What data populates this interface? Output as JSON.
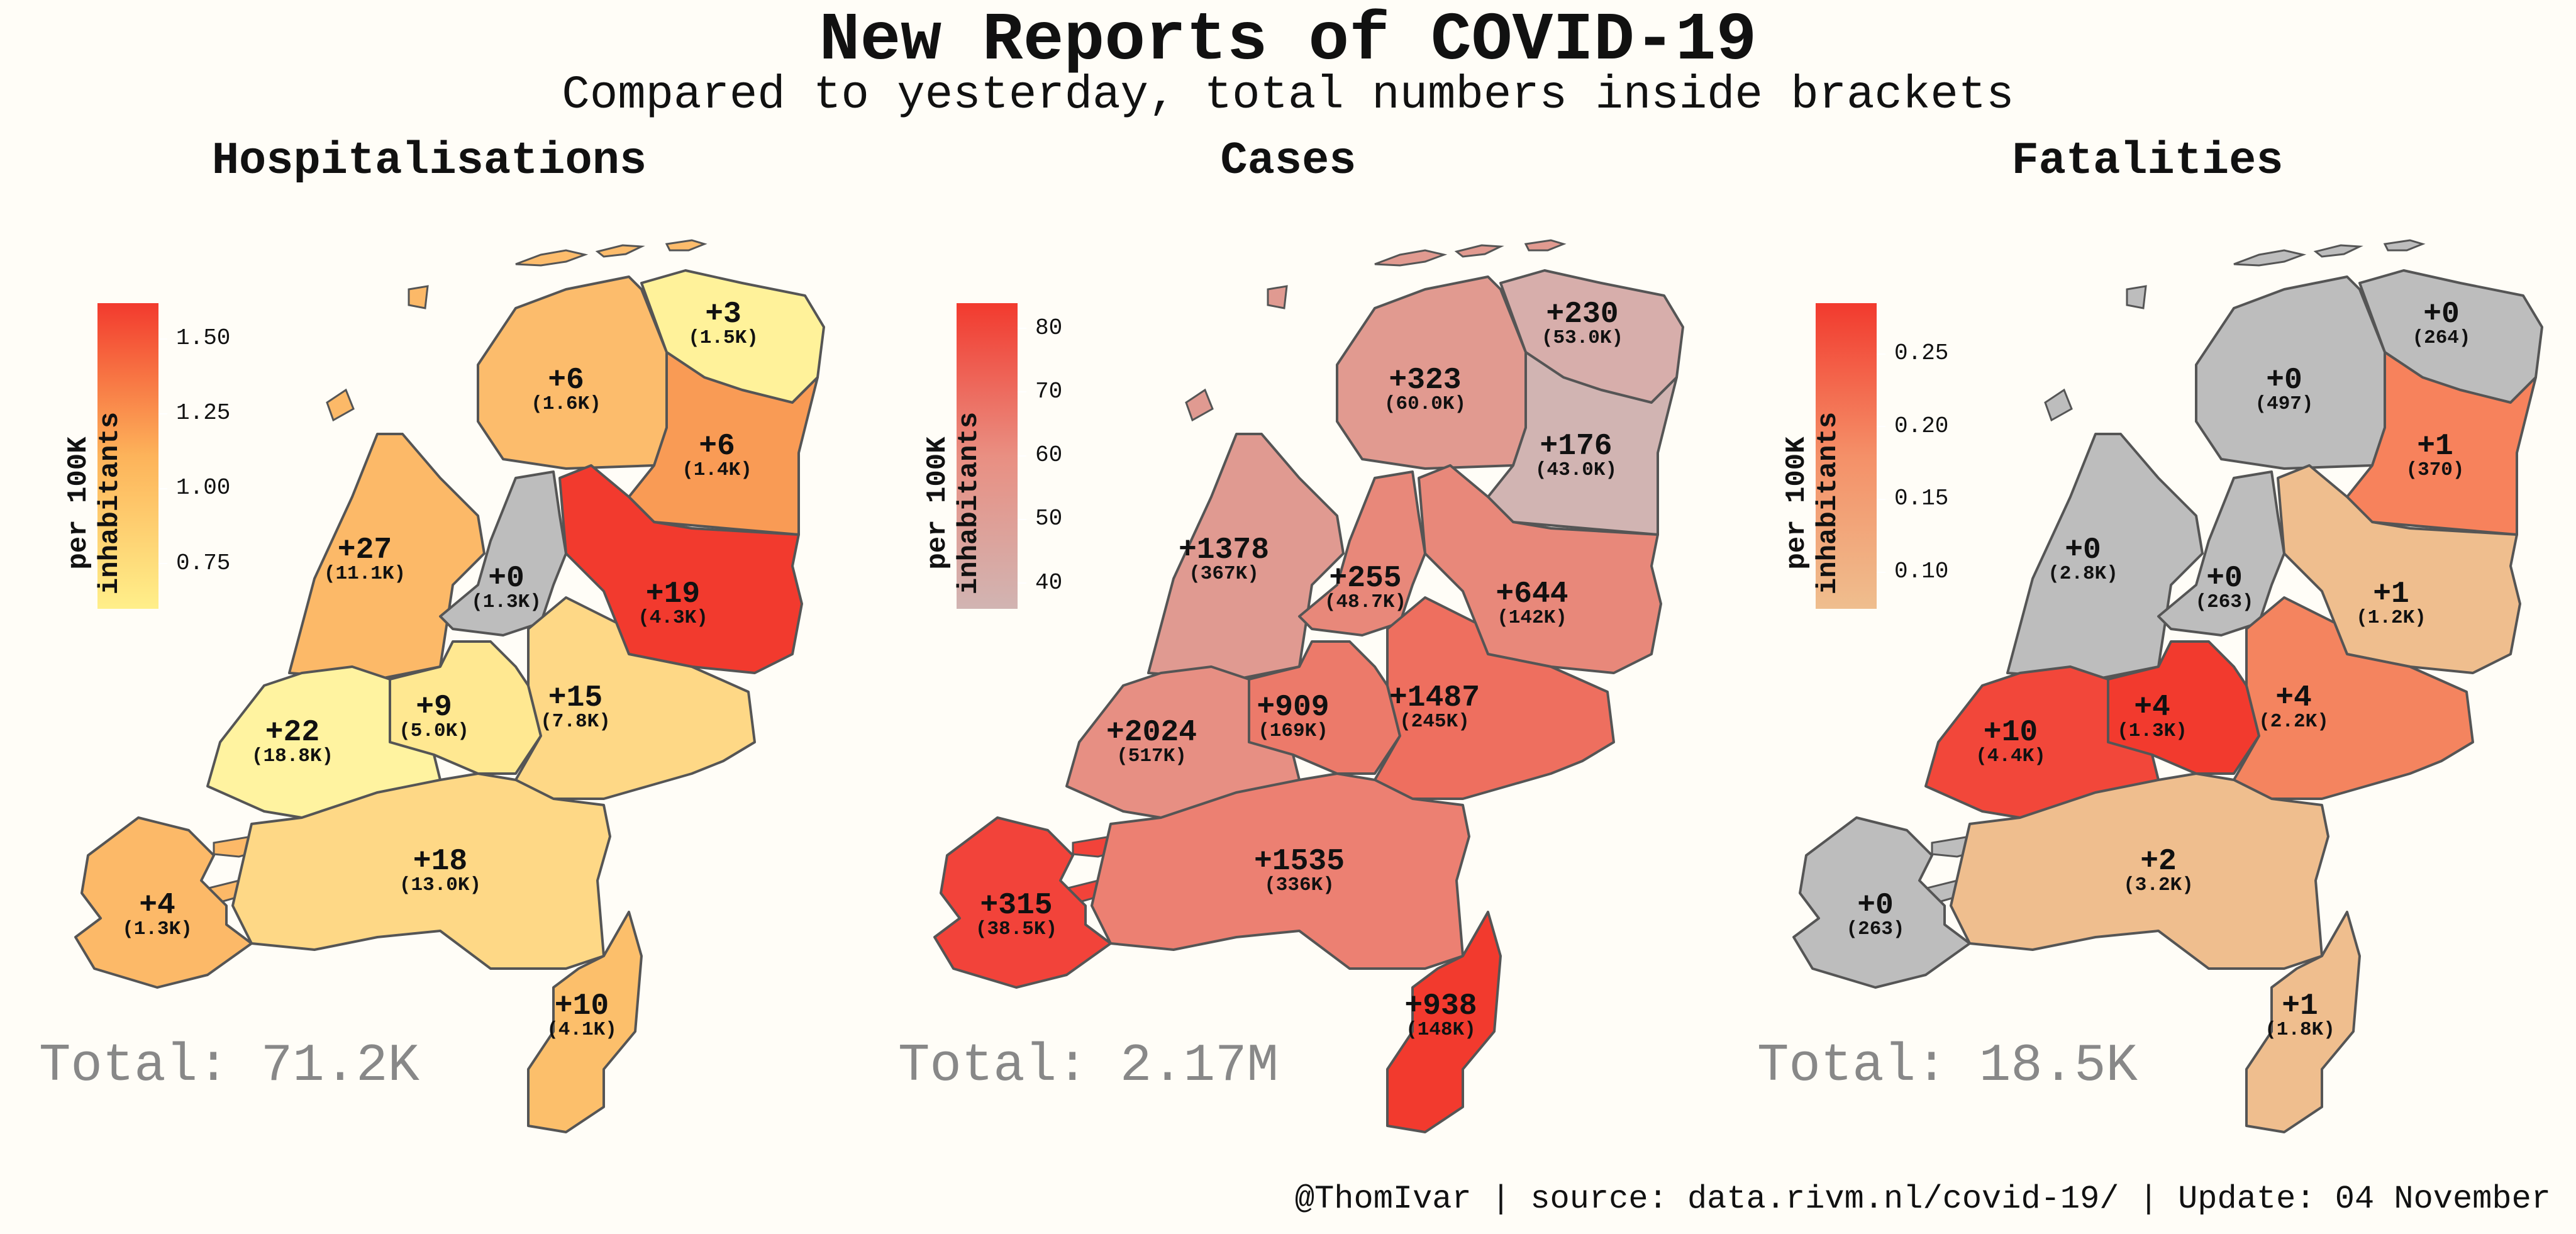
{
  "title": "New Reports of COVID-19",
  "subtitle": "Compared to yesterday, total numbers inside brackets",
  "caption": "@ThomIvar | source: data.rivm.nl/covid-19/ | Update: 04 November",
  "legend_label": "per 100K inhabitants",
  "no_data_color": "#bdbdbd",
  "panels": [
    {
      "title": "Hospitalisations",
      "total": "Total: 71.2K",
      "scale_colors": [
        "#ffef8a",
        "#fdb35a",
        "#f23a2e"
      ],
      "scale_ticks": [
        "1.50",
        "1.25",
        "1.00",
        "0.75"
      ],
      "scale_range": [
        0.6,
        1.62
      ],
      "regions": [
        {
          "id": "groningen",
          "delta": "+3",
          "total": "(1.5K)",
          "color": "#fff29a"
        },
        {
          "id": "friesland",
          "delta": "+6",
          "total": "(1.6K)",
          "color": "#fcbc6c"
        },
        {
          "id": "drenthe",
          "delta": "+6",
          "total": "(1.4K)",
          "color": "#f99b55"
        },
        {
          "id": "noord-holland",
          "delta": "+27",
          "total": "(11.1K)",
          "color": "#fcb968"
        },
        {
          "id": "flevoland",
          "delta": "+0",
          "total": "(1.3K)",
          "color": "#bdbdbd"
        },
        {
          "id": "overijssel",
          "delta": "+19",
          "total": "(4.3K)",
          "color": "#f23a2e"
        },
        {
          "id": "utrecht",
          "delta": "+9",
          "total": "(5.0K)",
          "color": "#ffe891"
        },
        {
          "id": "gelderland",
          "delta": "+15",
          "total": "(7.8K)",
          "color": "#fed886"
        },
        {
          "id": "zuid-holland",
          "delta": "+22",
          "total": "(18.8K)",
          "color": "#fff3a0"
        },
        {
          "id": "noord-brabant",
          "delta": "+18",
          "total": "(13.0K)",
          "color": "#fed886"
        },
        {
          "id": "zeeland",
          "delta": "+4",
          "total": "(1.3K)",
          "color": "#fcb968"
        },
        {
          "id": "limburg",
          "delta": "+10",
          "total": "(4.1K)",
          "color": "#fcbf6b"
        }
      ]
    },
    {
      "title": "Cases",
      "total": "Total: 2.17M",
      "scale_colors": [
        "#d1b4b2",
        "#e98f82",
        "#f23a2e"
      ],
      "scale_ticks": [
        "80",
        "70",
        "60",
        "50",
        "40"
      ],
      "scale_range": [
        36,
        84
      ],
      "regions": [
        {
          "id": "groningen",
          "delta": "+230",
          "total": "(53.0K)",
          "color": "#d7aeab"
        },
        {
          "id": "friesland",
          "delta": "+323",
          "total": "(60.0K)",
          "color": "#e19a90"
        },
        {
          "id": "drenthe",
          "delta": "+176",
          "total": "(43.0K)",
          "color": "#d1b4b2"
        },
        {
          "id": "noord-holland",
          "delta": "+1378",
          "total": "(367K)",
          "color": "#e09a91"
        },
        {
          "id": "flevoland",
          "delta": "+255",
          "total": "(48.7K)",
          "color": "#e8887a"
        },
        {
          "id": "overijssel",
          "delta": "+644",
          "total": "(142K)",
          "color": "#e8887a"
        },
        {
          "id": "utrecht",
          "delta": "+909",
          "total": "(169K)",
          "color": "#ec7a6a"
        },
        {
          "id": "gelderland",
          "delta": "+1487",
          "total": "(245K)",
          "color": "#ee6f5f"
        },
        {
          "id": "zuid-holland",
          "delta": "+2024",
          "total": "(517K)",
          "color": "#e78f83"
        },
        {
          "id": "noord-brabant",
          "delta": "+1535",
          "total": "(336K)",
          "color": "#ec8072"
        },
        {
          "id": "zeeland",
          "delta": "+315",
          "total": "(38.5K)",
          "color": "#f2433a"
        },
        {
          "id": "limburg",
          "delta": "+938",
          "total": "(148K)",
          "color": "#f23a2e"
        }
      ]
    },
    {
      "title": "Fatalities",
      "total": "Total: 18.5K",
      "scale_colors": [
        "#efbe8e",
        "#f49068",
        "#f23a2e"
      ],
      "scale_ticks": [
        "0.25",
        "0.20",
        "0.15",
        "0.10"
      ],
      "scale_range": [
        0.075,
        0.285
      ],
      "regions": [
        {
          "id": "groningen",
          "delta": "+0",
          "total": "(264)",
          "color": "#bdbdbd"
        },
        {
          "id": "friesland",
          "delta": "+0",
          "total": "(497)",
          "color": "#bdbdbd"
        },
        {
          "id": "drenthe",
          "delta": "+1",
          "total": "(370)",
          "color": "#f7825c"
        },
        {
          "id": "noord-holland",
          "delta": "+0",
          "total": "(2.8K)",
          "color": "#bdbdbd"
        },
        {
          "id": "flevoland",
          "delta": "+0",
          "total": "(263)",
          "color": "#bdbdbd"
        },
        {
          "id": "overijssel",
          "delta": "+1",
          "total": "(1.2K)",
          "color": "#efbe8e"
        },
        {
          "id": "utrecht",
          "delta": "+4",
          "total": "(1.3K)",
          "color": "#f23a2e"
        },
        {
          "id": "gelderland",
          "delta": "+4",
          "total": "(2.2K)",
          "color": "#f4845f"
        },
        {
          "id": "zuid-holland",
          "delta": "+10",
          "total": "(4.4K)",
          "color": "#f2473a"
        },
        {
          "id": "noord-brabant",
          "delta": "+2",
          "total": "(3.2K)",
          "color": "#efbe8e"
        },
        {
          "id": "zeeland",
          "delta": "+0",
          "total": "(263)",
          "color": "#bdbdbd"
        },
        {
          "id": "limburg",
          "delta": "+1",
          "total": "(1.8K)",
          "color": "#efbe8e"
        }
      ]
    }
  ]
}
